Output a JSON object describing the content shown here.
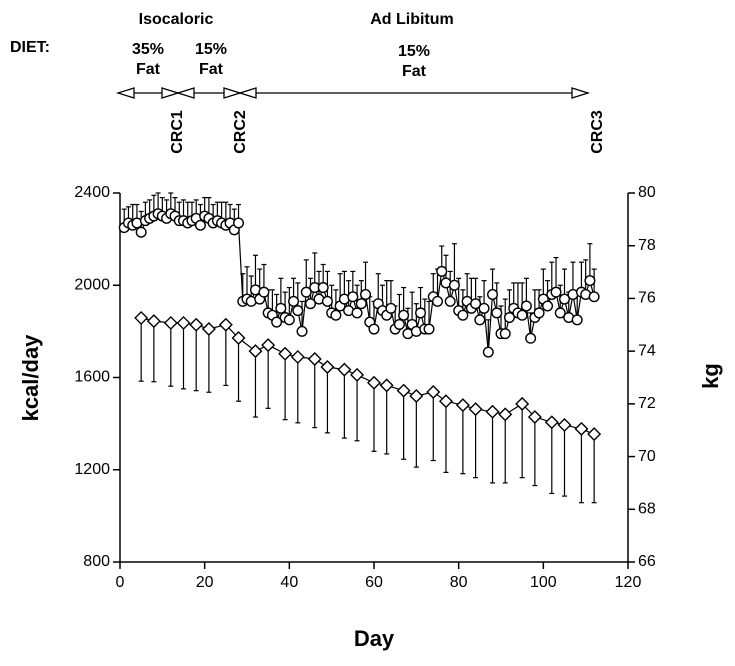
{
  "chart_data": {
    "type": "scatter",
    "xlabel": "Day",
    "ylabel": "kcal/day",
    "y2label": "kg",
    "xlim": [
      0,
      120
    ],
    "xticks": [
      0,
      20,
      40,
      60,
      80,
      100,
      120
    ],
    "ylim": [
      800,
      2400
    ],
    "yticks": [
      800,
      1200,
      1600,
      2000,
      2400
    ],
    "y2lim": [
      66,
      80
    ],
    "y2ticks": [
      66,
      68,
      70,
      72,
      74,
      76,
      78,
      80
    ],
    "annotations": {
      "diet": "DIET:",
      "phases": [
        "Isocaloric",
        "Ad Libitum"
      ],
      "fat_labels": [
        [
          "35%",
          "Fat"
        ],
        [
          "15%",
          "Fat"
        ],
        [
          "15%",
          "Fat"
        ]
      ],
      "events": [
        "CRC1",
        "CRC2",
        "CRC3"
      ]
    },
    "series": [
      {
        "marker": "circle",
        "color": "#000000",
        "error_direction": "up",
        "x": [
          1,
          2,
          3,
          4,
          5,
          6,
          7,
          8,
          9,
          10,
          11,
          12,
          13,
          14,
          15,
          16,
          17,
          18,
          19,
          20,
          21,
          22,
          23,
          24,
          25,
          26,
          27,
          28,
          29,
          30,
          31,
          32,
          33,
          34,
          35,
          36,
          37,
          38,
          39,
          40,
          41,
          42,
          43,
          44,
          45,
          46,
          47,
          48,
          49,
          50,
          51,
          52,
          53,
          54,
          55,
          56,
          57,
          58,
          59,
          60,
          61,
          62,
          63,
          64,
          65,
          66,
          67,
          68,
          69,
          70,
          71,
          72,
          73,
          74,
          75,
          76,
          77,
          78,
          79,
          80,
          81,
          82,
          83,
          84,
          85,
          86,
          87,
          88,
          89,
          90,
          91,
          92,
          93,
          94,
          95,
          96,
          97,
          98,
          99,
          100,
          101,
          102,
          103,
          104,
          105,
          106,
          107,
          108,
          109,
          110,
          111,
          112
        ],
        "values": [
          2250,
          2270,
          2260,
          2270,
          2230,
          2280,
          2290,
          2300,
          2310,
          2300,
          2290,
          2310,
          2300,
          2280,
          2280,
          2270,
          2280,
          2290,
          2260,
          2300,
          2290,
          2270,
          2280,
          2270,
          2260,
          2270,
          2240,
          2270,
          1930,
          1940,
          1930,
          1980,
          1940,
          1970,
          1880,
          1870,
          1840,
          1900,
          1860,
          1850,
          1930,
          1890,
          1800,
          1970,
          1920,
          1990,
          1940,
          1990,
          1930,
          1880,
          1870,
          1910,
          1940,
          1890,
          1950,
          1880,
          1920,
          1960,
          1840,
          1810,
          1920,
          1890,
          1870,
          1900,
          1810,
          1830,
          1870,
          1790,
          1830,
          1800,
          1880,
          1810,
          1810,
          1950,
          1930,
          2060,
          2010,
          1930,
          2000,
          1890,
          1870,
          1930,
          1900,
          1920,
          1850,
          1900,
          1710,
          1960,
          1880,
          1790,
          1790,
          1860,
          1900,
          1880,
          1870,
          1910,
          1770,
          1860,
          1880,
          1940,
          1910,
          1960,
          1970,
          1880,
          1940,
          1860,
          1960,
          1850,
          1970,
          1960,
          2020,
          1950
        ],
        "errors": [
          80,
          70,
          90,
          80,
          90,
          80,
          80,
          90,
          90,
          80,
          80,
          90,
          80,
          80,
          90,
          90,
          80,
          80,
          90,
          80,
          90,
          80,
          80,
          90,
          100,
          80,
          90,
          80,
          120,
          140,
          110,
          150,
          130,
          120,
          100,
          110,
          120,
          130,
          110,
          140,
          100,
          120,
          130,
          140,
          110,
          150,
          120,
          100,
          130,
          120,
          110,
          140,
          120,
          130,
          110,
          120,
          100,
          140,
          110,
          120,
          130,
          110,
          150,
          120,
          100,
          130,
          120,
          110,
          140,
          120,
          110,
          130,
          120,
          100,
          140,
          110,
          120,
          130,
          180,
          140,
          110,
          120,
          130,
          110,
          100,
          120,
          140,
          110,
          130,
          120,
          150,
          120,
          110,
          130,
          140,
          120,
          110,
          120,
          100,
          130,
          110,
          140,
          150,
          120,
          130,
          110,
          140,
          120,
          130,
          150,
          160,
          120
        ]
      },
      {
        "marker": "diamond",
        "color": "#000000",
        "axis": "y2",
        "error_direction": "down",
        "x": [
          5,
          8,
          12,
          15,
          18,
          21,
          25,
          28,
          32,
          35,
          39,
          42,
          46,
          49,
          53,
          56,
          60,
          63,
          67,
          70,
          74,
          77,
          81,
          84,
          88,
          91,
          95,
          98,
          102,
          105,
          109,
          112
        ],
        "values": [
          75.26,
          75.14,
          75.07,
          75.07,
          75.0,
          74.84,
          75.0,
          74.5,
          74.0,
          74.23,
          73.9,
          73.78,
          73.7,
          73.4,
          73.3,
          73.1,
          72.8,
          72.7,
          72.5,
          72.3,
          72.45,
          72.1,
          71.95,
          71.8,
          71.7,
          71.6,
          72.0,
          71.5,
          71.3,
          71.2,
          71.05,
          70.85
        ],
        "errors": [
          2.4,
          2.3,
          2.4,
          2.5,
          2.5,
          2.4,
          2.3,
          2.4,
          2.5,
          2.4,
          2.5,
          2.5,
          2.6,
          2.5,
          2.6,
          2.5,
          2.6,
          2.6,
          2.6,
          2.7,
          2.6,
          2.7,
          2.6,
          2.6,
          2.7,
          2.6,
          2.8,
          2.6,
          2.7,
          2.7,
          2.8,
          2.6
        ]
      }
    ]
  }
}
